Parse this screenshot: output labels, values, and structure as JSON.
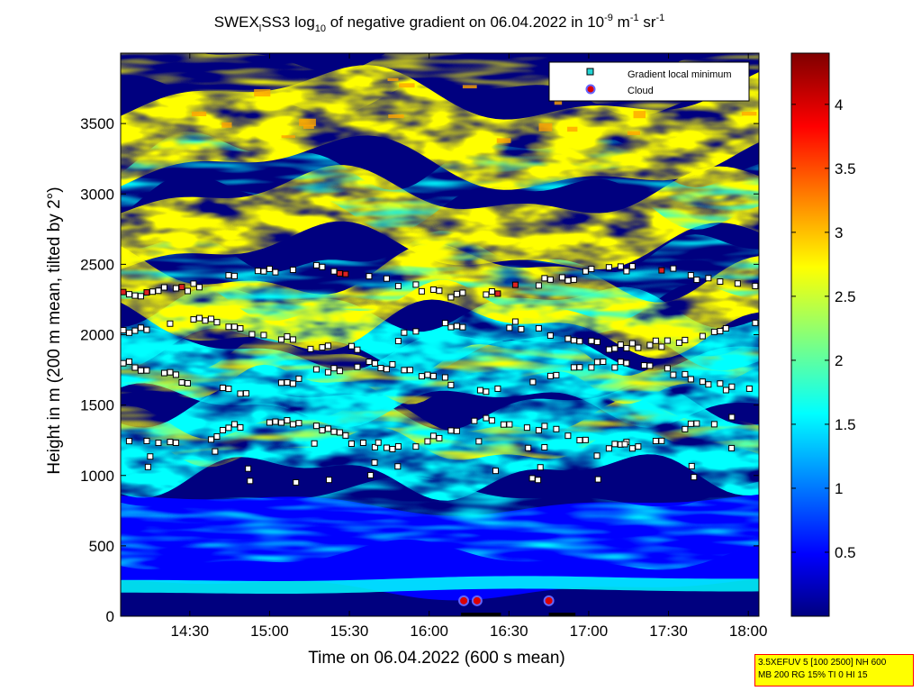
{
  "title": {
    "prefix": "SWEX",
    "sub1": "l",
    "middle": "SS3 log",
    "sub2": "10",
    "rest": " of negative gradient on 06.04.2022 in 10",
    "sup1": "-9",
    "unit1": " m",
    "sup2": "-1",
    "unit2": " sr",
    "sup3": "-1"
  },
  "colors": {
    "dark_blue": "#00007f",
    "blue": "#0000ff",
    "cyan": "#00ffff",
    "yellow": "#ffff00",
    "red": "#ff0000",
    "dark_red": "#7f0000",
    "marker_min_fill": "#22d3d3",
    "marker_cloud_fill": "#dd0000",
    "marker_cloud_edge": "#6464ff",
    "infobox_fill": "#ffff00",
    "infobox_border": "#ff0000"
  },
  "legend": {
    "entry1": "Gradient local minimum",
    "entry2": "Cloud"
  },
  "infobox": {
    "line1": "3.5XEFUV 5 [100 2500] NH 600",
    "line2": "MB 200 RG 15% TI 0 HI 15"
  },
  "chart_data": {
    "type": "heatmap",
    "xlabel": "Time on 06.04.2022 (600 s mean)",
    "ylabel": "Height in m (200 m mean, tilted by 2°)",
    "xlim": [
      "14:04",
      "18:04"
    ],
    "ylim": [
      0,
      4000
    ],
    "x_ticks": [
      "14:30",
      "15:00",
      "15:30",
      "16:00",
      "16:30",
      "17:00",
      "17:30",
      "18:00"
    ],
    "y_ticks": [
      "0",
      "500",
      "1000",
      "1500",
      "2000",
      "2500",
      "3000",
      "3500"
    ],
    "colorbar": {
      "range": [
        0,
        4.4
      ],
      "ticks": [
        "0.5",
        "1",
        "1.5",
        "2",
        "2.5",
        "3",
        "3.5",
        "4"
      ],
      "colormap": "jet"
    },
    "layers": [
      {
        "name": "gradient layer",
        "height_m": 2380,
        "approx_time_range": [
          "14:04",
          "18:04"
        ]
      },
      {
        "name": "gradient layer",
        "height_m": 2000,
        "approx_time_range": [
          "14:04",
          "18:04"
        ]
      },
      {
        "name": "gradient layer",
        "height_m": 1700,
        "approx_time_range": [
          "14:04",
          "18:04"
        ]
      },
      {
        "name": "gradient layer",
        "height_m": 1300,
        "approx_time_range": [
          "14:04",
          "18:04"
        ]
      }
    ],
    "cloud_detections": [
      {
        "time": "16:13",
        "height_m": 110
      },
      {
        "time": "16:18",
        "height_m": 110
      },
      {
        "time": "16:45",
        "height_m": 110
      }
    ]
  }
}
